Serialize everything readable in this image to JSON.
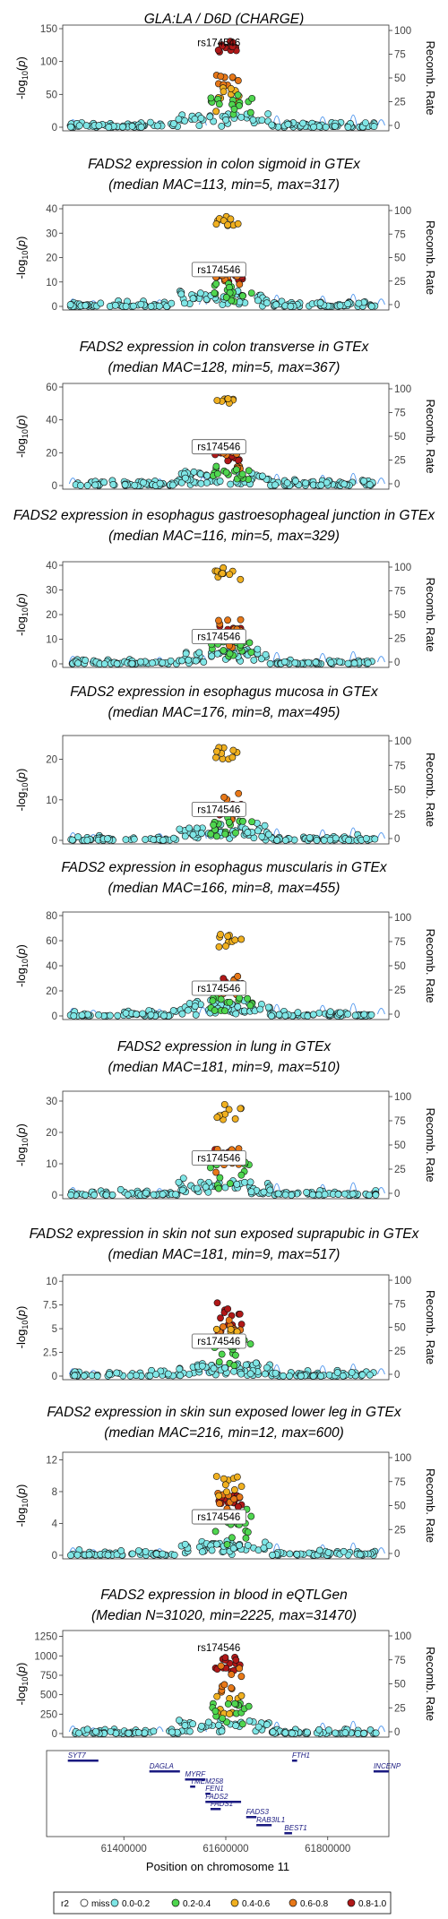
{
  "figure": {
    "xlabel": "Position on chromosome 11",
    "right_axis_label": "Recomb. Rate",
    "lead_snp": "rs174546"
  },
  "chart_data": [
    {
      "type": "scatter",
      "title_lines": [
        "GLA:LA / D6D (CHARGE)"
      ],
      "ylim": [
        0,
        150
      ],
      "yticks": [
        0,
        50,
        100,
        150
      ],
      "lead_y": 125,
      "lead_box": false,
      "clusters": [
        {
          "r2": "0.8-1.0",
          "y": [
            110,
            132
          ]
        },
        {
          "r2": "0.6-0.8",
          "y": [
            60,
            100
          ]
        },
        {
          "r2": "0.4-0.6",
          "y": [
            20,
            60
          ]
        },
        {
          "r2": "0.2-0.4",
          "y": [
            10,
            50
          ]
        }
      ]
    },
    {
      "type": "scatter",
      "title_lines": [
        "FADS2 expression in colon sigmoid in GTEx",
        "(median MAC=113, min=5, max=317)"
      ],
      "ylim": [
        0,
        40
      ],
      "yticks": [
        0,
        10,
        20,
        30,
        40
      ],
      "lead_y": 14,
      "lead_box": true,
      "clusters": [
        {
          "r2": "0.4-0.6",
          "y": [
            33,
            37
          ]
        },
        {
          "r2": "0.8-1.0",
          "y": [
            10,
            15
          ]
        },
        {
          "r2": "0.6-0.8",
          "y": [
            8,
            16
          ]
        },
        {
          "r2": "0.2-0.4",
          "y": [
            2,
            10
          ]
        }
      ]
    },
    {
      "type": "scatter",
      "title_lines": [
        "FADS2 expression in colon transverse in GTEx",
        "(median MAC=128, min=5, max=367)"
      ],
      "ylim": [
        0,
        60
      ],
      "yticks": [
        0,
        20,
        40,
        60
      ],
      "lead_y": 22,
      "lead_box": true,
      "clusters": [
        {
          "r2": "0.4-0.6",
          "y": [
            50,
            53
          ]
        },
        {
          "r2": "0.8-1.0",
          "y": [
            15,
            22
          ]
        },
        {
          "r2": "0.6-0.8",
          "y": [
            10,
            22
          ]
        },
        {
          "r2": "0.2-0.4",
          "y": [
            3,
            12
          ]
        }
      ]
    },
    {
      "type": "scatter",
      "title_lines": [
        "FADS2 expression in esophagus gastroesophageal junction in GTEx",
        "(median MAC=116, min=5, max=329)"
      ],
      "ylim": [
        0,
        40
      ],
      "yticks": [
        0,
        10,
        20,
        30,
        40
      ],
      "lead_y": 10,
      "lead_box": true,
      "clusters": [
        {
          "r2": "0.4-0.6",
          "y": [
            33,
            39
          ]
        },
        {
          "r2": "0.8-1.0",
          "y": [
            10,
            16
          ]
        },
        {
          "r2": "0.6-0.8",
          "y": [
            6,
            18
          ]
        },
        {
          "r2": "0.2-0.4",
          "y": [
            2,
            9
          ]
        }
      ]
    },
    {
      "type": "scatter",
      "title_lines": [
        "FADS2 expression in esophagus mucosa in GTEx",
        "(median MAC=176, min=8, max=495)"
      ],
      "ylim": [
        0,
        25
      ],
      "yticks": [
        0,
        10,
        20
      ],
      "lead_y": 7,
      "lead_box": true,
      "clusters": [
        {
          "r2": "0.4-0.6",
          "y": [
            20,
            23
          ]
        },
        {
          "r2": "0.8-1.0",
          "y": [
            6,
            9
          ]
        },
        {
          "r2": "0.6-0.8",
          "y": [
            5,
            12
          ]
        },
        {
          "r2": "0.2-0.4",
          "y": [
            1,
            6
          ]
        }
      ]
    },
    {
      "type": "scatter",
      "title_lines": [
        "FADS2 expression in esophagus muscularis in GTEx",
        "(median MAC=166, min=8, max=455)"
      ],
      "ylim": [
        0,
        80
      ],
      "yticks": [
        0,
        20,
        40,
        60,
        80
      ],
      "lead_y": 20,
      "lead_box": true,
      "clusters": [
        {
          "r2": "0.4-0.6",
          "y": [
            55,
            65
          ]
        },
        {
          "r2": "0.8-1.0",
          "y": [
            20,
            30
          ]
        },
        {
          "r2": "0.6-0.8",
          "y": [
            15,
            35
          ]
        },
        {
          "r2": "0.2-0.4",
          "y": [
            3,
            15
          ]
        }
      ]
    },
    {
      "type": "scatter",
      "title_lines": [
        "FADS2 expression in lung in GTEx",
        "(median MAC=181, min=9, max=510)"
      ],
      "ylim": [
        0,
        32
      ],
      "yticks": [
        0,
        10,
        20,
        30
      ],
      "lead_y": 11,
      "lead_box": true,
      "clusters": [
        {
          "r2": "0.4-0.6",
          "y": [
            24,
            30
          ]
        },
        {
          "r2": "0.8-1.0",
          "y": [
            12,
            15
          ]
        },
        {
          "r2": "0.6-0.8",
          "y": [
            6,
            15
          ]
        },
        {
          "r2": "0.2-0.4",
          "y": [
            2,
            12
          ]
        }
      ]
    },
    {
      "type": "scatter",
      "title_lines": [
        "FADS2 expression in skin not sun exposed suprapubic in GTEx",
        "(median MAC=181, min=9, max=517)"
      ],
      "ylim": [
        0,
        10.3
      ],
      "yticks": [
        0,
        2.5,
        5,
        7.5,
        10
      ],
      "lead_y": 3.4,
      "lead_box": true,
      "clusters": [
        {
          "r2": "0.8-1.0",
          "y": [
            4,
            8.2
          ]
        },
        {
          "r2": "0.6-0.8",
          "y": [
            3.5,
            6
          ]
        },
        {
          "r2": "0.4-0.6",
          "y": [
            3,
            5
          ]
        },
        {
          "r2": "0.2-0.4",
          "y": [
            1,
            4
          ]
        }
      ]
    },
    {
      "type": "scatter",
      "title_lines": [
        "FADS2 expression in skin sun exposed lower leg in GTEx",
        "(median MAC=216, min=12, max=600)"
      ],
      "ylim": [
        0,
        12.5
      ],
      "yticks": [
        0,
        4,
        8,
        12
      ],
      "lead_y": 4.5,
      "lead_box": true,
      "clusters": [
        {
          "r2": "0.8-1.0",
          "y": [
            6,
            7.5
          ]
        },
        {
          "r2": "0.6-0.8",
          "y": [
            5,
            8
          ]
        },
        {
          "r2": "0.4-0.6",
          "y": [
            7,
            10
          ]
        },
        {
          "r2": "0.2-0.4",
          "y": [
            1,
            6
          ]
        }
      ]
    },
    {
      "type": "scatter",
      "title_lines": [
        "FADS2 expression in blood in eQTLGen",
        "(Median N=31020, min=2225, max=31470)"
      ],
      "ylim": [
        0,
        1280
      ],
      "yticks": [
        0,
        250,
        500,
        750,
        1000,
        1250
      ],
      "lead_y": 1070,
      "lead_box": false,
      "clusters": [
        {
          "r2": "0.8-1.0",
          "y": [
            800,
            1000
          ]
        },
        {
          "r2": "0.6-0.8",
          "y": [
            500,
            900
          ]
        },
        {
          "r2": "0.4-0.6",
          "y": [
            150,
            500
          ]
        },
        {
          "r2": "0.2-0.4",
          "y": [
            80,
            400
          ]
        }
      ]
    }
  ],
  "axes": {
    "xlim": [
      61280000,
      61920000
    ],
    "xticks": [
      "61400000",
      "61600000",
      "61800000"
    ],
    "xtick_values": [
      61400000,
      61600000,
      61800000
    ],
    "right_ticks": [
      "0",
      "25",
      "50",
      "75",
      "100"
    ],
    "right_tick_values": [
      0,
      25,
      50,
      75,
      100
    ]
  },
  "genes": [
    {
      "name": "SYT7",
      "start": 61290000,
      "end": 61350000
    },
    {
      "name": "DAGLA",
      "start": 61450000,
      "end": 61510000
    },
    {
      "name": "MYRF",
      "start": 61520000,
      "end": 61560000
    },
    {
      "name": "TMEM258",
      "start": 61530000,
      "end": 61540000
    },
    {
      "name": "FEN1",
      "start": 61560000,
      "end": 61570000
    },
    {
      "name": "FADS2",
      "start": 61560000,
      "end": 61630000
    },
    {
      "name": "FADS1",
      "start": 61570000,
      "end": 61590000
    },
    {
      "name": "FADS3",
      "start": 61640000,
      "end": 61660000
    },
    {
      "name": "RAB3IL1",
      "start": 61660000,
      "end": 61690000
    },
    {
      "name": "BEST1",
      "start": 61715000,
      "end": 61730000
    },
    {
      "name": "FTH1",
      "start": 61730000,
      "end": 61740000
    },
    {
      "name": "INCENP",
      "start": 61890000,
      "end": 61920000
    }
  ],
  "legend": {
    "title": "r2",
    "items": [
      {
        "label": "miss",
        "color": "#ffffff"
      },
      {
        "label": "0.0-0.2",
        "color": "#7fe6e6"
      },
      {
        "label": "0.2-0.4",
        "color": "#4fd64f"
      },
      {
        "label": "0.4-0.6",
        "color": "#f0b020"
      },
      {
        "label": "0.6-0.8",
        "color": "#e87818"
      },
      {
        "label": "0.8-1.0",
        "color": "#b01818"
      }
    ]
  }
}
